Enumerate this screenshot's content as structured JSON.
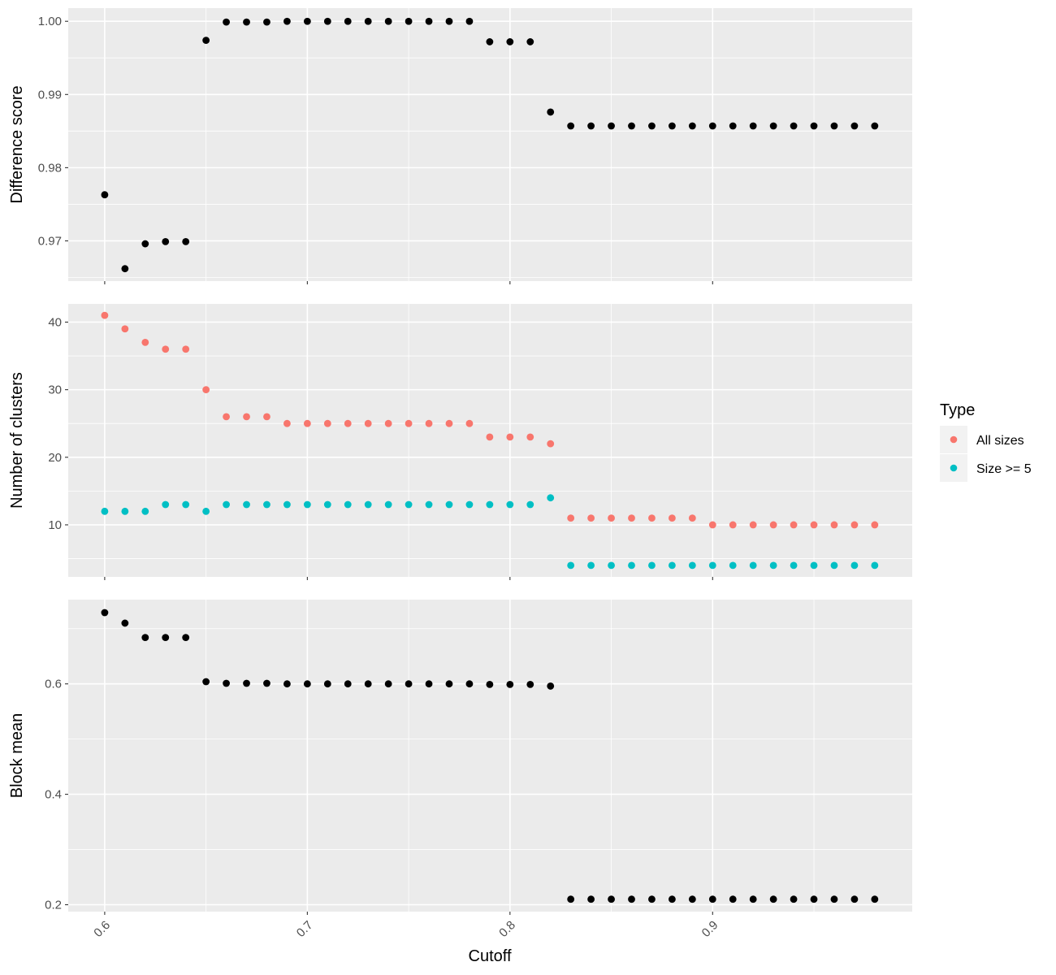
{
  "chart_data": [
    {
      "type": "scatter",
      "panel": 1,
      "ylabel": "Difference score",
      "yticks": [
        "0.97",
        "0.98",
        "0.99",
        "1.00"
      ],
      "ylim": [
        0.9645,
        1.0018
      ],
      "xlim": [
        0.582,
        0.9985
      ],
      "x": [
        0.6,
        0.61,
        0.62,
        0.63,
        0.64,
        0.65,
        0.66,
        0.67,
        0.68,
        0.69,
        0.7,
        0.71,
        0.72,
        0.73,
        0.74,
        0.75,
        0.76,
        0.77,
        0.78,
        0.79,
        0.8,
        0.81,
        0.82,
        0.83,
        0.84,
        0.85,
        0.86,
        0.87,
        0.88,
        0.89,
        0.9,
        0.91,
        0.92,
        0.93,
        0.94,
        0.95,
        0.96,
        0.97,
        0.98
      ],
      "series": [
        {
          "color": "#000000",
          "values": [
            0.9763,
            0.9662,
            0.9696,
            0.9699,
            0.9699,
            0.9974,
            0.9999,
            0.9999,
            0.9999,
            1.0,
            1.0,
            1.0,
            1.0,
            1.0,
            1.0,
            1.0,
            1.0,
            1.0,
            1.0,
            0.9972,
            0.9972,
            0.9972,
            0.9876,
            0.9857,
            0.9857,
            0.9857,
            0.9857,
            0.9857,
            0.9857,
            0.9857,
            0.9857,
            0.9857,
            0.9857,
            0.9857,
            0.9857,
            0.9857,
            0.9857,
            0.9857,
            0.9857
          ]
        }
      ]
    },
    {
      "type": "scatter",
      "panel": 2,
      "ylabel": "Number of clusters",
      "yticks": [
        "10",
        "20",
        "30",
        "40"
      ],
      "ylim": [
        2.3,
        42.7
      ],
      "xlim": [
        0.582,
        0.9985
      ],
      "x": [
        0.6,
        0.61,
        0.62,
        0.63,
        0.64,
        0.65,
        0.66,
        0.67,
        0.68,
        0.69,
        0.7,
        0.71,
        0.72,
        0.73,
        0.74,
        0.75,
        0.76,
        0.77,
        0.78,
        0.79,
        0.8,
        0.81,
        0.82,
        0.83,
        0.84,
        0.85,
        0.86,
        0.87,
        0.88,
        0.89,
        0.9,
        0.91,
        0.92,
        0.93,
        0.94,
        0.95,
        0.96,
        0.97,
        0.98
      ],
      "series": [
        {
          "name": "All sizes",
          "color": "#F8766D",
          "values": [
            41,
            39,
            37,
            36,
            36,
            30,
            26,
            26,
            26,
            25,
            25,
            25,
            25,
            25,
            25,
            25,
            25,
            25,
            25,
            23,
            23,
            23,
            22,
            11,
            11,
            11,
            11,
            11,
            11,
            11,
            10,
            10,
            10,
            10,
            10,
            10,
            10,
            10,
            10
          ]
        },
        {
          "name": "Size >= 5",
          "color": "#00BFC4",
          "values": [
            12,
            12,
            12,
            13,
            13,
            12,
            13,
            13,
            13,
            13,
            13,
            13,
            13,
            13,
            13,
            13,
            13,
            13,
            13,
            13,
            13,
            13,
            14,
            4,
            4,
            4,
            4,
            4,
            4,
            4,
            4,
            4,
            4,
            4,
            4,
            4,
            4,
            4,
            4
          ]
        }
      ]
    },
    {
      "type": "scatter",
      "panel": 3,
      "ylabel": "Block mean",
      "xlabel": "Cutoff",
      "yticks": [
        "0.2",
        "0.4",
        "0.6"
      ],
      "xticks": [
        "0.6",
        "0.7",
        "0.8",
        "0.9"
      ],
      "ylim": [
        0.1875,
        0.7526
      ],
      "xlim": [
        0.582,
        0.9985
      ],
      "x": [
        0.6,
        0.61,
        0.62,
        0.63,
        0.64,
        0.65,
        0.66,
        0.67,
        0.68,
        0.69,
        0.7,
        0.71,
        0.72,
        0.73,
        0.74,
        0.75,
        0.76,
        0.77,
        0.78,
        0.79,
        0.8,
        0.81,
        0.82,
        0.83,
        0.84,
        0.85,
        0.86,
        0.87,
        0.88,
        0.89,
        0.9,
        0.91,
        0.92,
        0.93,
        0.94,
        0.95,
        0.96,
        0.97,
        0.98
      ],
      "series": [
        {
          "color": "#000000",
          "values": [
            0.729,
            0.71,
            0.684,
            0.684,
            0.684,
            0.604,
            0.601,
            0.601,
            0.601,
            0.6,
            0.6,
            0.6,
            0.6,
            0.6,
            0.6,
            0.6,
            0.6,
            0.6,
            0.6,
            0.599,
            0.599,
            0.599,
            0.596,
            0.21,
            0.21,
            0.21,
            0.21,
            0.21,
            0.21,
            0.21,
            0.21,
            0.21,
            0.21,
            0.21,
            0.21,
            0.21,
            0.21,
            0.21,
            0.21
          ]
        }
      ]
    }
  ],
  "legend": {
    "title": "Type",
    "items": [
      {
        "label": "All sizes",
        "color": "#F8766D"
      },
      {
        "label": "Size >= 5",
        "color": "#00BFC4"
      }
    ]
  }
}
